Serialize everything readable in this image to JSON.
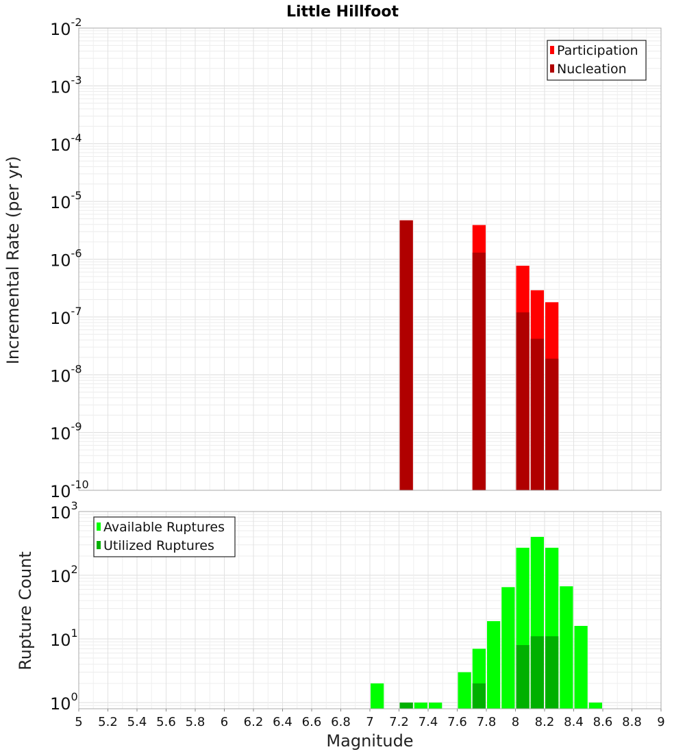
{
  "chart_data": [
    {
      "type": "bar",
      "title": "Little Hillfoot",
      "xlabel": "",
      "ylabel": "Incremental Rate (per yr)",
      "yscale": "log",
      "ylim": [
        1e-10,
        0.01
      ],
      "xlim": [
        5,
        9
      ],
      "bar_width": 0.1,
      "legend_position": "top-right",
      "grid": true,
      "y_tick_labels": [
        {
          "base": "10",
          "exp": "-10",
          "value": 1e-10
        },
        {
          "base": "10",
          "exp": "-9",
          "value": 1e-09
        },
        {
          "base": "10",
          "exp": "-8",
          "value": 1e-08
        },
        {
          "base": "10",
          "exp": "-7",
          "value": 1e-07
        },
        {
          "base": "10",
          "exp": "-6",
          "value": 1e-06
        },
        {
          "base": "10",
          "exp": "-5",
          "value": 1e-05
        },
        {
          "base": "10",
          "exp": "-4",
          "value": 0.0001
        },
        {
          "base": "10",
          "exp": "-3",
          "value": 0.001
        },
        {
          "base": "10",
          "exp": "-2",
          "value": 0.01
        }
      ],
      "series": [
        {
          "name": "Participation",
          "color": "#ff0000",
          "points": [
            {
              "x": 7.25,
              "y": 4.7e-06
            },
            {
              "x": 7.75,
              "y": 3.9e-06
            },
            {
              "x": 8.05,
              "y": 7.7e-07
            },
            {
              "x": 8.15,
              "y": 2.9e-07
            },
            {
              "x": 8.25,
              "y": 1.8e-07
            }
          ]
        },
        {
          "name": "Nucleation",
          "color": "#b00000",
          "points": [
            {
              "x": 7.25,
              "y": 4.7e-06
            },
            {
              "x": 7.75,
              "y": 1.3e-06
            },
            {
              "x": 8.05,
              "y": 1.2e-07
            },
            {
              "x": 8.15,
              "y": 4.2e-08
            },
            {
              "x": 8.25,
              "y": 1.9e-08
            }
          ]
        }
      ]
    },
    {
      "type": "bar",
      "title": "",
      "xlabel": "Magnitude",
      "ylabel": "Rupture Count",
      "yscale": "log",
      "ylim": [
        0.8,
        1000
      ],
      "xlim": [
        5,
        9
      ],
      "bar_width": 0.1,
      "legend_position": "top-left",
      "grid": true,
      "x_tick_labels": [
        "5",
        "5.2",
        "5.4",
        "5.6",
        "5.8",
        "6",
        "6.2",
        "6.4",
        "6.6",
        "6.8",
        "7",
        "7.2",
        "7.4",
        "7.6",
        "7.8",
        "8",
        "8.2",
        "8.4",
        "8.6",
        "8.8",
        "9"
      ],
      "y_tick_labels": [
        {
          "base": "10",
          "exp": "0",
          "value": 1
        },
        {
          "base": "10",
          "exp": "1",
          "value": 10
        },
        {
          "base": "10",
          "exp": "2",
          "value": 100
        },
        {
          "base": "10",
          "exp": "3",
          "value": 1000
        }
      ],
      "series": [
        {
          "name": "Available Ruptures",
          "color": "#00ff00",
          "points": [
            {
              "x": 7.05,
              "y": 2
            },
            {
              "x": 7.25,
              "y": 1
            },
            {
              "x": 7.35,
              "y": 1
            },
            {
              "x": 7.45,
              "y": 1
            },
            {
              "x": 7.65,
              "y": 3
            },
            {
              "x": 7.75,
              "y": 7
            },
            {
              "x": 7.85,
              "y": 19
            },
            {
              "x": 7.95,
              "y": 65
            },
            {
              "x": 8.05,
              "y": 270
            },
            {
              "x": 8.15,
              "y": 400
            },
            {
              "x": 8.25,
              "y": 270
            },
            {
              "x": 8.35,
              "y": 67
            },
            {
              "x": 8.45,
              "y": 16
            },
            {
              "x": 8.55,
              "y": 1
            }
          ]
        },
        {
          "name": "Utilized Ruptures",
          "color": "#00b000",
          "points": [
            {
              "x": 7.25,
              "y": 1
            },
            {
              "x": 7.75,
              "y": 2
            },
            {
              "x": 8.05,
              "y": 8
            },
            {
              "x": 8.15,
              "y": 11
            },
            {
              "x": 8.25,
              "y": 11
            }
          ]
        }
      ]
    }
  ]
}
